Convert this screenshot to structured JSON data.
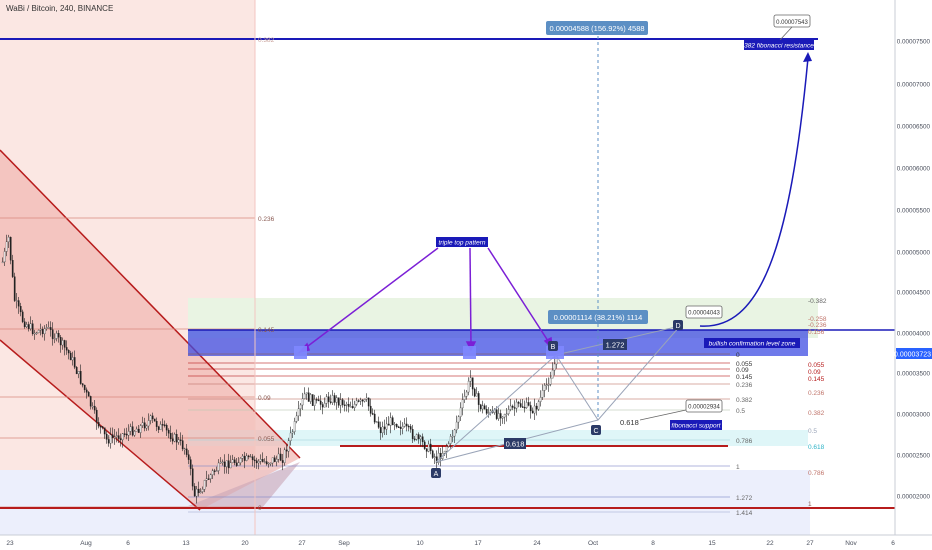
{
  "header": {
    "symbol_line": "WaBi / Bitcoin, 240, BINANCE"
  },
  "price_axis": {
    "ticks": [
      "0.00007500",
      "0.00007000",
      "0.00006500",
      "0.00006000",
      "0.00005500",
      "0.00005000",
      "0.00004500",
      "0.00004000",
      "0.00003500",
      "0.00003000",
      "0.00002500",
      "0.00002000"
    ],
    "current_price": "0.00003723",
    "current_color": "#2962ff"
  },
  "time_axis": {
    "ticks": [
      "23",
      "Aug",
      "6",
      "13",
      "20",
      "27",
      "Sep",
      "10",
      "17",
      "24",
      "Oct",
      "8",
      "15",
      "22",
      "27",
      "Nov",
      "6"
    ]
  },
  "annotations": {
    "measure_big": "0.00004588 (156.92%) 4588",
    "measure_small": "0.00001114 (38.21%) 1114",
    "target_label": "0.00007543",
    "fib_resistance": "382 fibonacci resistance",
    "triple_top": "triple top pattern",
    "bullish_zone": "bullish confirmation level zone",
    "fib_support": "fibonacci support",
    "point_d_label": "0.00004043",
    "point_c_label": "0.00002934",
    "ratio_1272": "1.272",
    "ratio_0618_left": "0.618",
    "ratio_0618_right": "0.618",
    "point_a": "A",
    "point_b": "B",
    "point_c": "C",
    "point_d": "D"
  },
  "fib_left": {
    "levels": [
      "0.382",
      "0.236",
      "0.145",
      "0.09",
      "0.055",
      "0"
    ]
  },
  "fib_mid": {
    "levels": [
      "0",
      "0.055",
      "0.09",
      "0.145",
      "0.236",
      "0.382",
      "0.5",
      "0.786",
      "1",
      "1.272",
      "1.414"
    ],
    "extra": [
      "0.618"
    ]
  },
  "fib_right": {
    "levels": [
      "-0.382",
      "-0.258",
      "-0.236",
      "0.055",
      "0.09",
      "0.145",
      "0.236",
      "0.382",
      "0.5",
      "0.618",
      "0.786",
      "1"
    ],
    "extra": [
      "0.156"
    ]
  },
  "colors": {
    "zone": "#3f4de3",
    "arrow": "#7b1fd6",
    "projection": "#1a1ab8",
    "channel": "#c62828",
    "label_bg": "#5c8fc4"
  },
  "chart_data": {
    "type": "candlestick",
    "y_range": [
      1.7e-05,
      8.2e-05
    ],
    "x_range": [
      "Jul 23",
      "Nov 6"
    ],
    "key_points": {
      "A": 2.42e-05,
      "B": 3.74e-05,
      "C": 2.934e-05,
      "D": 4.043e-05,
      "target": 7.543e-05
    }
  }
}
